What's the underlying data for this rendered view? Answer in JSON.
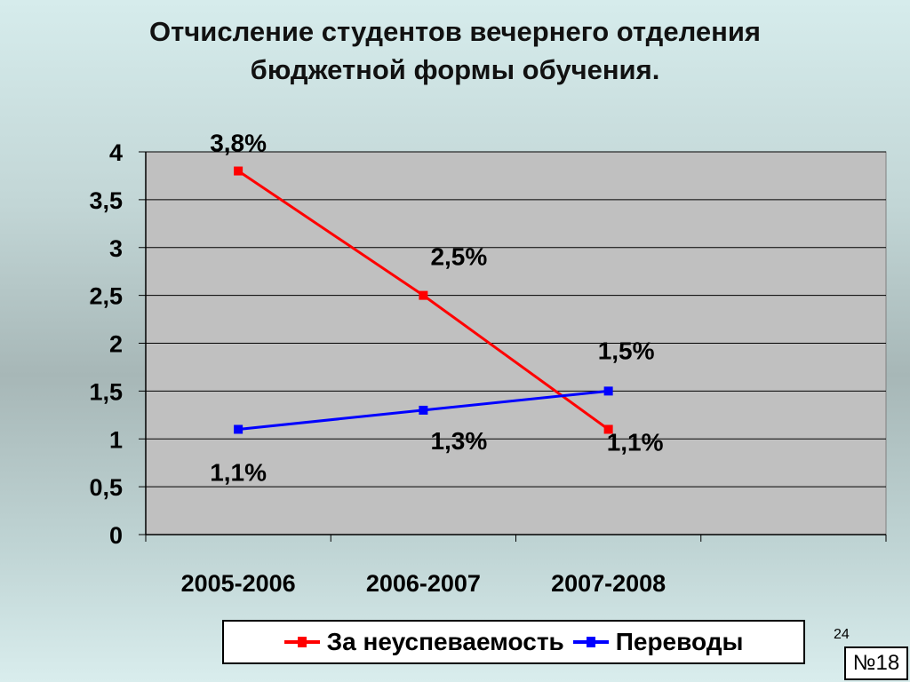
{
  "title": {
    "line1": "Отчисление студентов вечернего отделения",
    "line2": "бюджетной формы обучения."
  },
  "chart_data": {
    "type": "line",
    "categories": [
      "2005-2006",
      "2006-2007",
      "2007-2008"
    ],
    "ylim": [
      0,
      4
    ],
    "yticks": [
      {
        "value": 0,
        "label": "0"
      },
      {
        "value": 0.5,
        "label": "0,5"
      },
      {
        "value": 1,
        "label": "1"
      },
      {
        "value": 1.5,
        "label": "1,5"
      },
      {
        "value": 2,
        "label": "2"
      },
      {
        "value": 2.5,
        "label": "2,5"
      },
      {
        "value": 3,
        "label": "3"
      },
      {
        "value": 3.5,
        "label": "3,5"
      },
      {
        "value": 4,
        "label": "4"
      }
    ],
    "grid": true,
    "legend_position": "bottom",
    "series": [
      {
        "name": "За неуспеваемость",
        "color": "#ff0000",
        "values": [
          3.8,
          2.5,
          1.1
        ],
        "labels": [
          "3,8%",
          "2,5%",
          "1,1%"
        ]
      },
      {
        "name": "Переводы",
        "color": "#0000ff",
        "values": [
          1.1,
          1.3,
          1.5
        ],
        "labels": [
          "1,1%",
          "1,3%",
          "1,5%"
        ]
      }
    ]
  },
  "footer": {
    "page_number": "24",
    "slide_number": "№18"
  }
}
